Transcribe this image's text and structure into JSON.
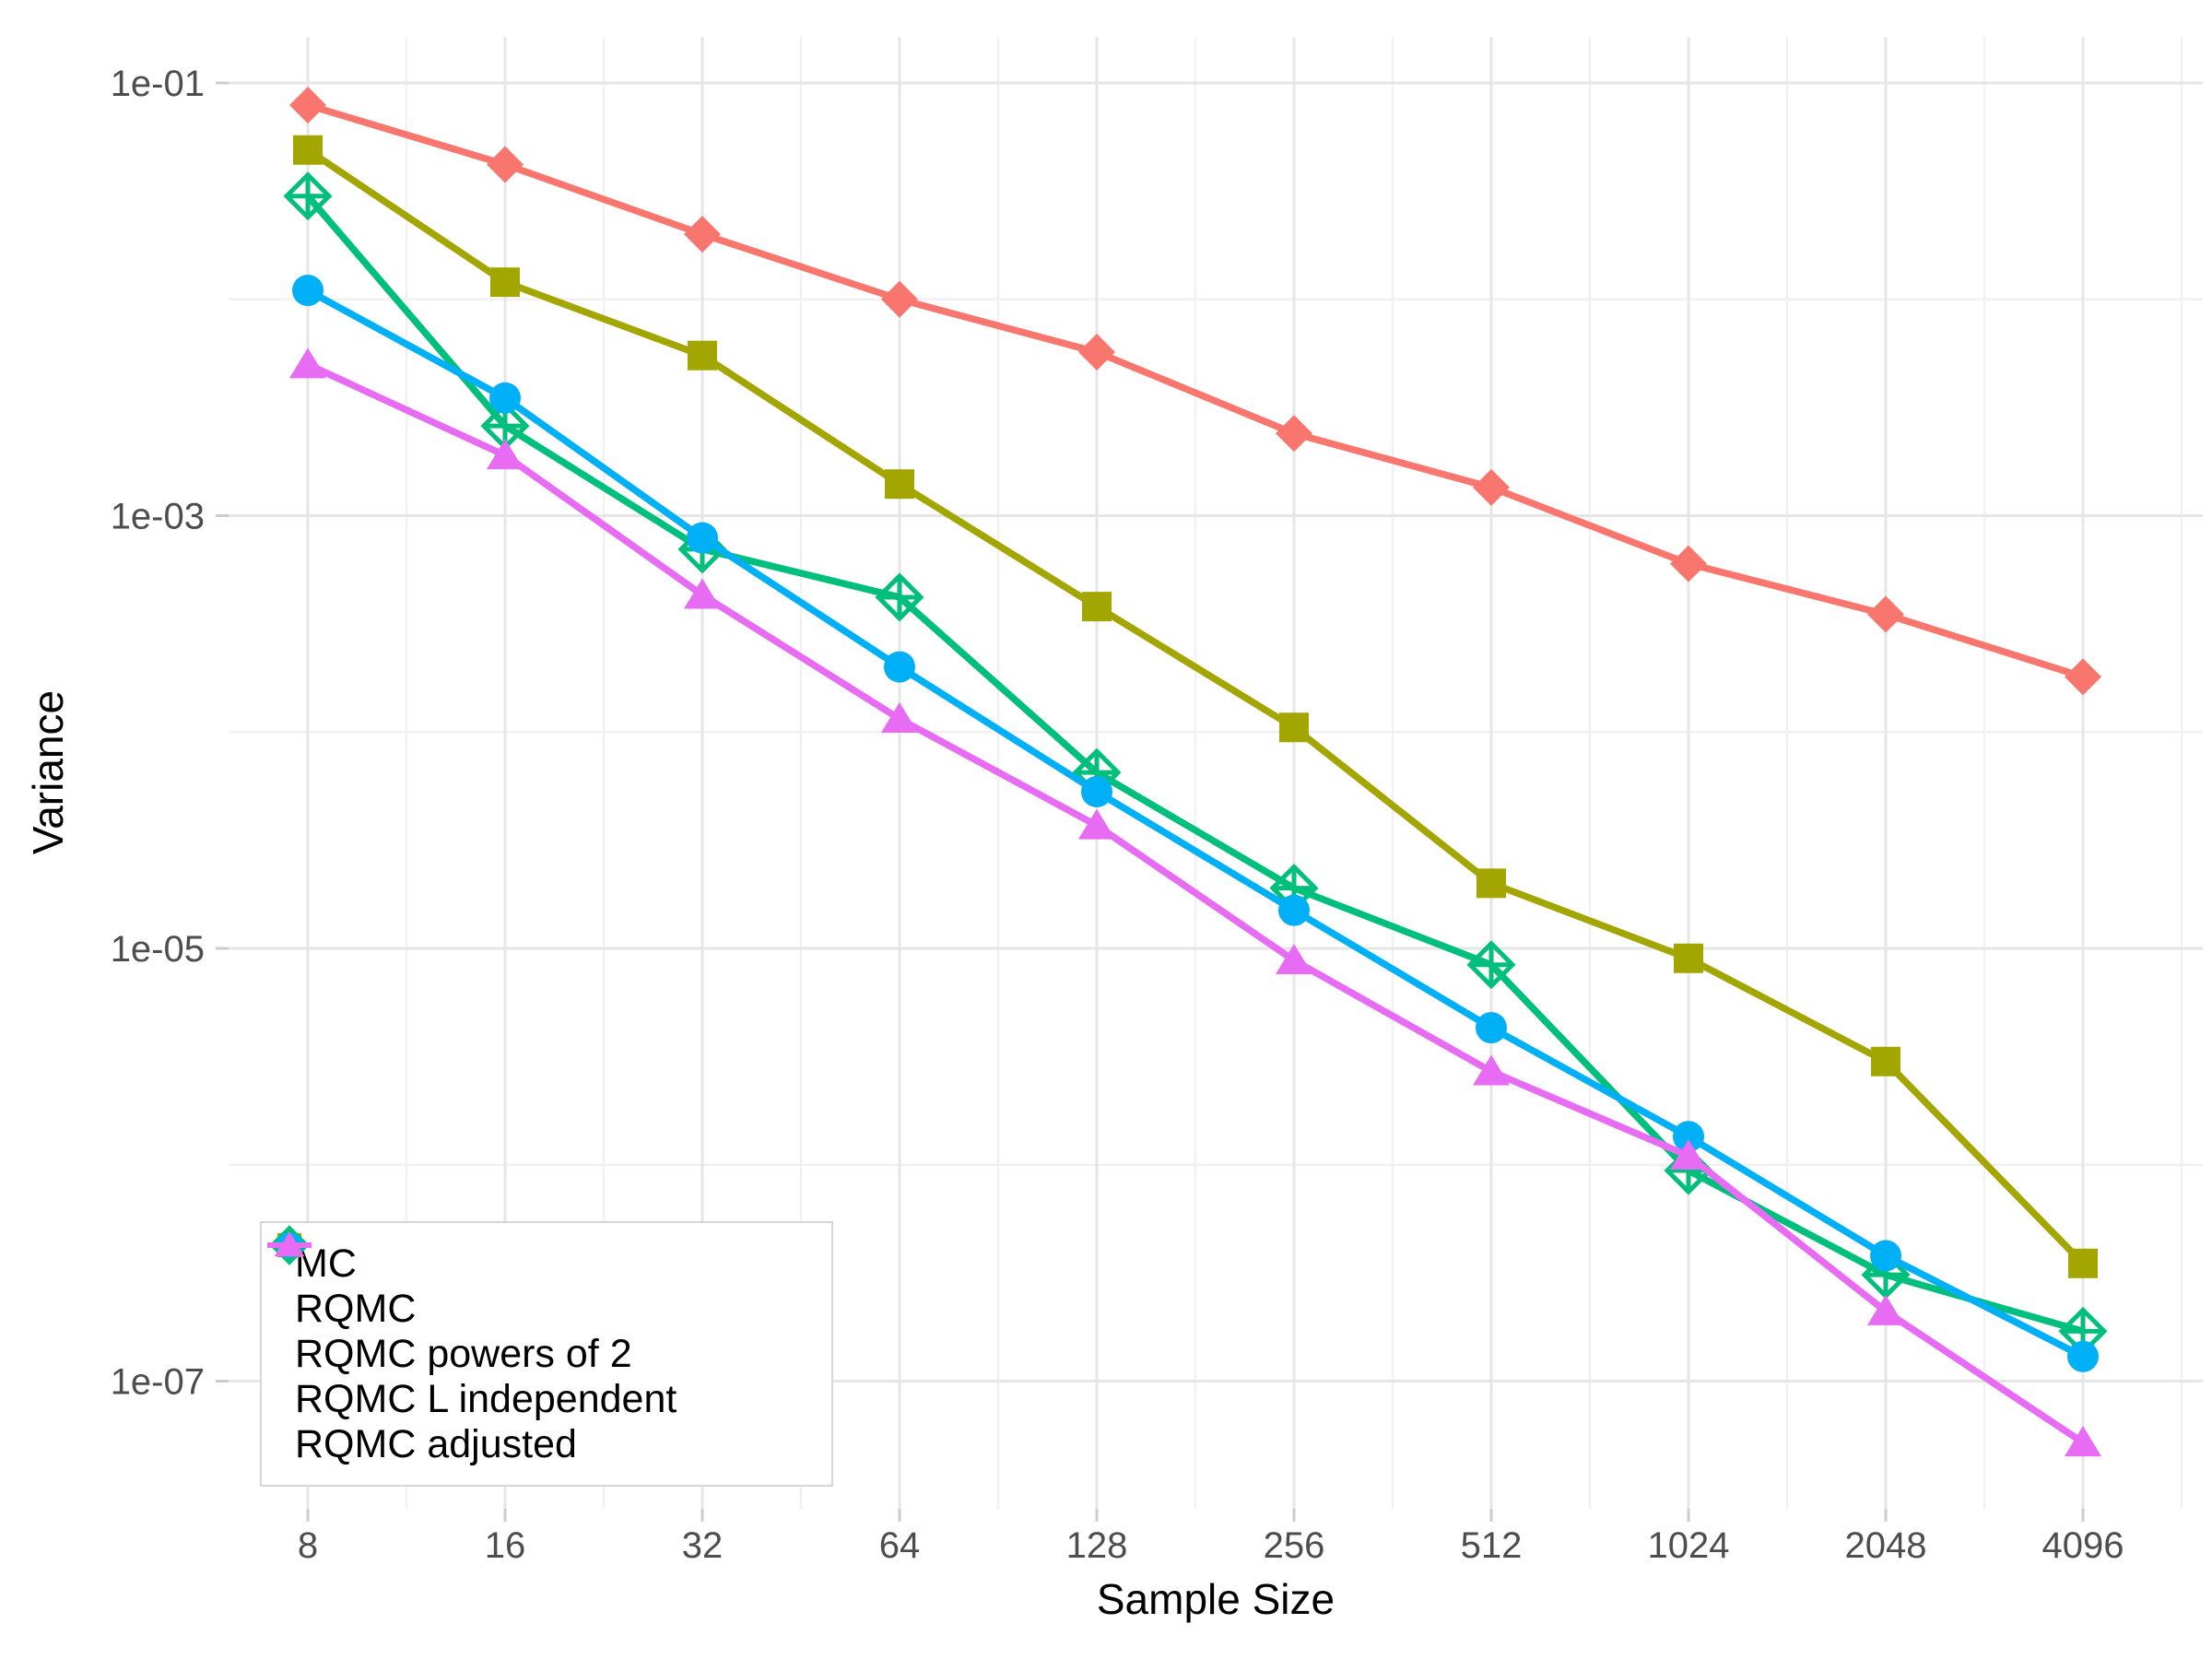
{
  "chart_data": {
    "type": "line",
    "title": "",
    "xlabel": "Sample Size",
    "ylabel": "Variance",
    "x_scale": "log2",
    "y_scale": "log10",
    "grid": true,
    "legend_position": "inside bottom-left",
    "categories": [
      8,
      16,
      32,
      64,
      128,
      256,
      512,
      1024,
      2048,
      4096
    ],
    "x_tick_labels": [
      "8",
      "16",
      "32",
      "64",
      "128",
      "256",
      "512",
      "1024",
      "2048",
      "4096"
    ],
    "y_ticks": [
      {
        "label": "1e-01",
        "value": 0.1
      },
      {
        "label": "1e-03",
        "value": 0.001
      },
      {
        "label": "1e-05",
        "value": 1e-05
      },
      {
        "label": "1e-07",
        "value": 1e-07
      }
    ],
    "y_minor_ticks": [
      0.01,
      0.0001,
      1e-06
    ],
    "xlim": [
      6,
      6250
    ],
    "ylim": [
      2.6e-08,
      0.16
    ],
    "series": [
      {
        "name": "MC",
        "marker": "diamond",
        "fill": "solid",
        "color": "#F8766D",
        "values": [
          0.079,
          0.042,
          0.02,
          0.01,
          0.0057,
          0.0024,
          0.00135,
          0.0006,
          0.00035,
          0.00018
        ]
      },
      {
        "name": "RQMC",
        "marker": "square",
        "fill": "solid",
        "color": "#A3A500",
        "values": [
          0.049,
          0.012,
          0.0055,
          0.0014,
          0.00038,
          0.000105,
          2e-05,
          9e-06,
          3e-06,
          3.5e-07
        ]
      },
      {
        "name": "RQMC powers of 2",
        "marker": "diamond-plus",
        "fill": "open",
        "color": "#00BF7D",
        "values": [
          0.03,
          0.0026,
          0.0007,
          0.00042,
          6.5e-05,
          1.9e-05,
          8.4e-06,
          9.4e-07,
          3.1e-07,
          1.7e-07
        ]
      },
      {
        "name": "RQMC L independent",
        "marker": "circle",
        "fill": "solid",
        "color": "#00B0F6",
        "values": [
          0.011,
          0.0035,
          0.00079,
          0.0002,
          5.3e-05,
          1.5e-05,
          4.3e-06,
          1.35e-06,
          3.8e-07,
          1.3e-07
        ]
      },
      {
        "name": "RQMC adjusted",
        "marker": "triangle",
        "fill": "solid",
        "color": "#E76BF3",
        "values": [
          0.005,
          0.0019,
          0.00043,
          0.000115,
          3.7e-05,
          8.8e-06,
          2.7e-06,
          1.1e-06,
          2.1e-07,
          5.2e-08
        ]
      }
    ]
  },
  "colors": {
    "background": "#ffffff",
    "grid_major": "#e6e6e6",
    "grid_minor": "#f1f1f1",
    "axis_tick": "#cccccc",
    "axis_text": "#4d4d4d",
    "axis_title": "#000000",
    "legend_border": "#d6d6d6"
  }
}
